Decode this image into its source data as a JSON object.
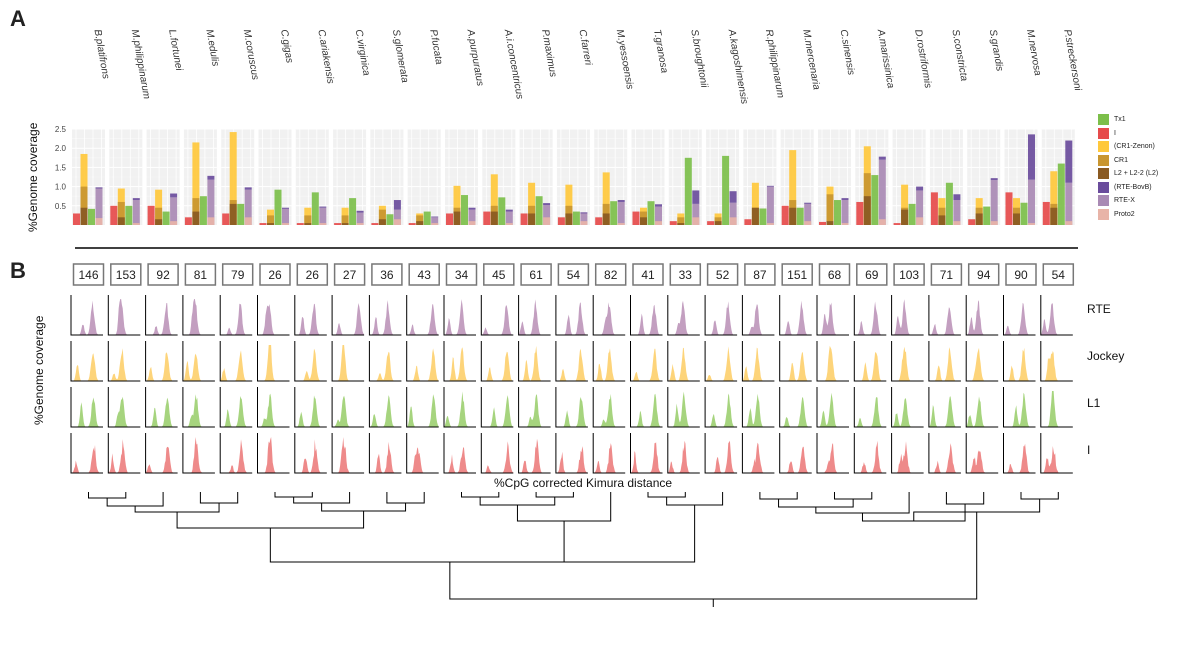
{
  "panel_labels": {
    "a": "A",
    "b": "B"
  },
  "chart_data": [
    {
      "type": "bar",
      "panel": "A",
      "ylabel": "%Genome coverage",
      "ylim": [
        0,
        2.5
      ],
      "yticks": [
        "2.5",
        "2.0",
        "1.5",
        "1.0",
        "0.5"
      ],
      "species": [
        "B.platifrons",
        "M.philippinarum",
        "L.fortunei",
        "M.edulis",
        "M.coruscus",
        "C.gigas",
        "C.ariakensis",
        "C.virginica",
        "S.glomerata",
        "P.fucata",
        "A.purpuratus",
        "A.i.concentricus",
        "P.maximus",
        "C.farreri",
        "M.yessoensis",
        "T.granosa",
        "S.broughtonii",
        "A.kagoshimensis",
        "R.philippinarum",
        "M.mercenaria",
        "C.sinensis",
        "A.marissinica",
        "D.rostriformis",
        "S.constricta",
        "S.grandis",
        "M.nervosa",
        "P.streckersoni"
      ],
      "legend": [
        {
          "name": "Tx1",
          "color": "#7cbf4a"
        },
        {
          "name": "I",
          "color": "#e64b4b"
        },
        {
          "name": "(CR1-Zenon)",
          "color": "#ffc83c"
        },
        {
          "name": "CR1",
          "color": "#c99630"
        },
        {
          "name": "L2 + L2-2 (L2)",
          "color": "#8a5a22"
        },
        {
          "name": "(RTE-BovB)",
          "color": "#6a4c9c"
        },
        {
          "name": "RTE-X",
          "color": "#a98ab4"
        },
        {
          "name": "Proto2",
          "color": "#e8b4a8"
        }
      ],
      "series": {
        "I": [
          0.3,
          0.5,
          0.5,
          0.2,
          0.3,
          0.05,
          0.05,
          0.05,
          0.05,
          0.05,
          0.3,
          0.35,
          0.3,
          0.2,
          0.2,
          0.35,
          0.1,
          0.1,
          0.15,
          0.5,
          0.08,
          0.6,
          0.05,
          0.85,
          0.15,
          0.85,
          0.6
        ],
        "Zenon": [
          1.85,
          0.95,
          0.92,
          2.15,
          2.42,
          0.4,
          0.45,
          0.45,
          0.5,
          0.3,
          1.02,
          1.32,
          1.1,
          1.05,
          1.37,
          0.45,
          0.3,
          0.3,
          1.1,
          1.95,
          1.0,
          2.05,
          1.05,
          0.7,
          0.7,
          0.7,
          1.4
        ],
        "CR1": [
          1.0,
          0.6,
          0.45,
          0.7,
          0.65,
          0.25,
          0.25,
          0.25,
          0.4,
          0.25,
          0.45,
          0.5,
          0.5,
          0.5,
          0.55,
          0.35,
          0.2,
          0.2,
          0.45,
          0.65,
          0.8,
          1.35,
          0.45,
          0.45,
          0.45,
          0.45,
          0.55
        ],
        "L2": [
          0.45,
          0.2,
          0.15,
          0.35,
          0.55,
          0.05,
          0.05,
          0.05,
          0.15,
          0.1,
          0.35,
          0.35,
          0.3,
          0.3,
          0.3,
          0.2,
          0.05,
          0.1,
          0.45,
          0.45,
          0.1,
          0.75,
          0.4,
          0.25,
          0.3,
          0.3,
          0.45
        ],
        "Tx1": [
          0.42,
          0.5,
          0.35,
          0.75,
          0.55,
          0.92,
          0.85,
          0.7,
          0.28,
          0.35,
          0.78,
          0.72,
          0.75,
          0.35,
          0.62,
          0.62,
          1.75,
          1.8,
          0.43,
          0.45,
          0.65,
          1.3,
          0.55,
          1.1,
          0.48,
          0.58,
          1.6
        ],
        "RTE_X": [
          0.95,
          0.65,
          0.72,
          1.18,
          0.92,
          0.42,
          0.45,
          0.32,
          0.4,
          0.2,
          0.4,
          0.35,
          0.52,
          0.3,
          0.6,
          0.48,
          0.55,
          0.58,
          1.0,
          0.55,
          0.65,
          1.7,
          0.9,
          0.65,
          1.17,
          1.18,
          1.1
        ],
        "BovB": [
          0.03,
          0.05,
          0.1,
          0.1,
          0.06,
          0.03,
          0.03,
          0.05,
          0.25,
          0.02,
          0.05,
          0.05,
          0.05,
          0.03,
          0.05,
          0.06,
          0.35,
          0.3,
          0.02,
          0.03,
          0.05,
          0.08,
          0.1,
          0.15,
          0.05,
          1.18,
          1.1
        ],
        "Proto2": [
          0.18,
          0.05,
          0.1,
          0.2,
          0.2,
          0.05,
          0.05,
          0.05,
          0.15,
          0.05,
          0.1,
          0.05,
          0.2,
          0.1,
          0.05,
          0.1,
          0.2,
          0.2,
          0.05,
          0.1,
          0.05,
          0.15,
          0.2,
          0.1,
          0.1,
          0.05,
          0.1
        ]
      }
    },
    {
      "type": "area",
      "panel": "B",
      "ylabel": "%Genome coverage",
      "xlabel": "%CpG corrected Kimura distance",
      "counts": [
        "146",
        "153",
        "92",
        "81",
        "79",
        "26",
        "26",
        "27",
        "36",
        "43",
        "34",
        "45",
        "61",
        "54",
        "82",
        "41",
        "33",
        "52",
        "87",
        "151",
        "68",
        "69",
        "103",
        "71",
        "94",
        "90",
        "54"
      ],
      "rows": [
        {
          "name": "RTE",
          "color": "#c39fc0"
        },
        {
          "name": "Jockey",
          "color": "#fdd47a"
        },
        {
          "name": "L1",
          "color": "#a6d47e"
        },
        {
          "name": "I",
          "color": "#ee8a8a"
        }
      ]
    },
    {
      "type": "dendrogram",
      "panel": "B",
      "leaves": 27
    }
  ]
}
